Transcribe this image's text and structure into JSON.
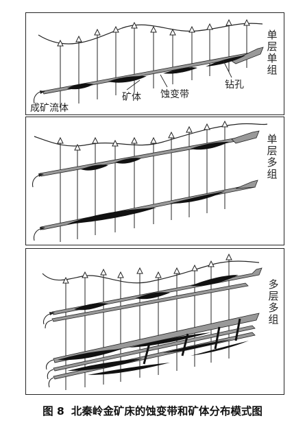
{
  "panels": [
    {
      "label": "单层单组"
    },
    {
      "label": "单层多组"
    },
    {
      "label": "多层多组"
    }
  ],
  "annotations": {
    "ore_fluid": "成矿流体",
    "ore_body": "矿体",
    "alteration_zone": "蚀变带",
    "drill_hole": "钻孔"
  },
  "caption": {
    "number": "图 8",
    "text": "北秦岭金矿床的蚀变带和矿体分布模式图"
  }
}
